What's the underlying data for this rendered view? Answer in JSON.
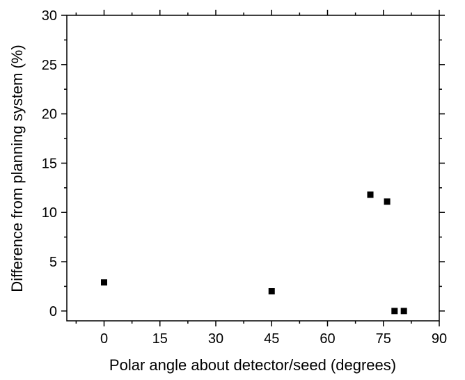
{
  "chart_data": {
    "type": "scatter",
    "xlabel": "Polar angle about detector/seed (degrees)",
    "ylabel": "Difference from planning system (%)",
    "xlim": [
      -10,
      90
    ],
    "ylim": [
      -1,
      30
    ],
    "x_ticks": [
      0,
      15,
      30,
      45,
      60,
      75,
      90
    ],
    "y_ticks": [
      0,
      5,
      10,
      15,
      20,
      25,
      30
    ],
    "x_tick_labels": [
      "0",
      "15",
      "30",
      "45",
      "60",
      "75",
      "90"
    ],
    "y_tick_labels": [
      "0",
      "5",
      "10",
      "15",
      "20",
      "25",
      "30"
    ],
    "grid": false,
    "marker": "square",
    "marker_color": "#000000",
    "series": [
      {
        "points": [
          {
            "x": 0,
            "y": 2.9
          },
          {
            "x": 45,
            "y": 2.0
          },
          {
            "x": 71.5,
            "y": 11.8
          },
          {
            "x": 76,
            "y": 11.1
          },
          {
            "x": 78,
            "y": 0.0
          },
          {
            "x": 80.5,
            "y": 0.0
          }
        ]
      }
    ]
  }
}
